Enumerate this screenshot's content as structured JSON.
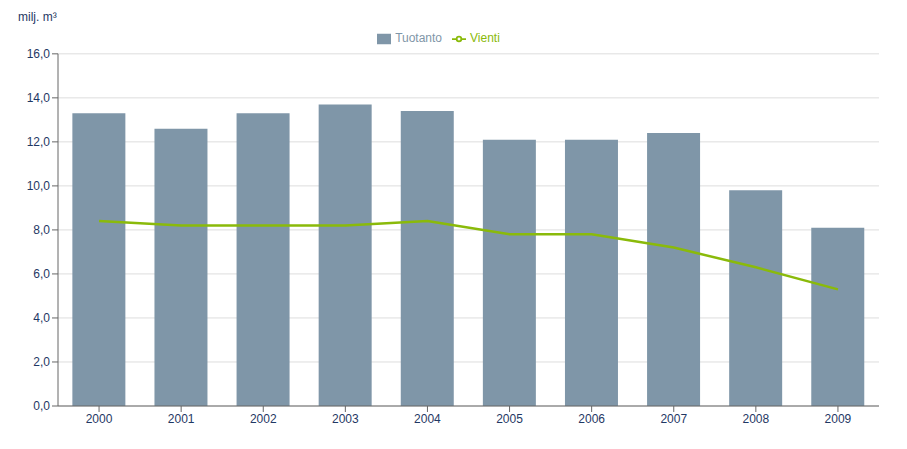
{
  "chart_data": {
    "type": "bar",
    "ylabel": "milj. m³",
    "categories": [
      "2000",
      "2001",
      "2002",
      "2003",
      "2004",
      "2005",
      "2006",
      "2007",
      "2008",
      "2009"
    ],
    "series": [
      {
        "name": "Tuotanto",
        "type": "bar",
        "color": "#7f96a8",
        "values": [
          13.3,
          12.6,
          13.3,
          13.7,
          13.4,
          12.1,
          12.1,
          12.4,
          9.8,
          8.1
        ]
      },
      {
        "name": "Vienti",
        "type": "line",
        "color": "#8aba0a",
        "values": [
          8.4,
          8.2,
          8.2,
          8.2,
          8.4,
          7.8,
          7.8,
          7.2,
          6.3,
          5.3
        ]
      }
    ],
    "ylim": [
      0,
      16
    ],
    "yticks": [
      {
        "value": 0,
        "label": "0,0"
      },
      {
        "value": 2,
        "label": "2,0"
      },
      {
        "value": 4,
        "label": "4,0"
      },
      {
        "value": 6,
        "label": "6,0"
      },
      {
        "value": 8,
        "label": "8,0"
      },
      {
        "value": 10,
        "label": "10,0"
      },
      {
        "value": 12,
        "label": "12,0"
      },
      {
        "value": 14,
        "label": "14,0"
      },
      {
        "value": 16,
        "label": "16,0"
      }
    ],
    "grid": true,
    "legend": "top"
  }
}
